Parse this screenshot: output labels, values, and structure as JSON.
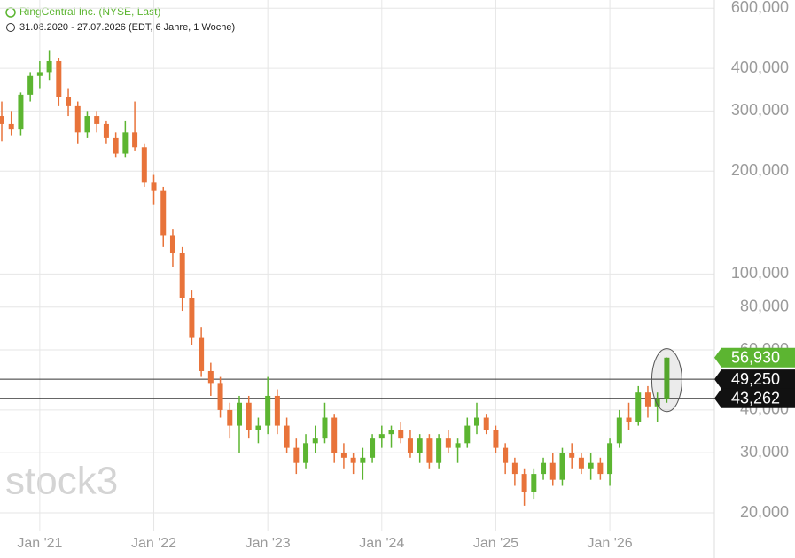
{
  "chart_data": {
    "type": "candlestick",
    "title": "RingCentral Inc. (NYSE, Last)",
    "subtitle": "31.08.2020 - 27.07.2026 (EDT, 6 Jahre, 1 Woche)",
    "watermark": "stock3",
    "log_scale": true,
    "grid": true,
    "up_color": "#5cb531",
    "down_color": "#e8733a",
    "categories": [
      null,
      null,
      null,
      null,
      "Jan '21",
      null,
      null,
      null,
      null,
      null,
      null,
      null,
      null,
      null,
      null,
      null,
      "Jan '22",
      null,
      null,
      null,
      null,
      null,
      null,
      null,
      null,
      null,
      null,
      null,
      "Jan '23",
      null,
      null,
      null,
      null,
      null,
      null,
      null,
      null,
      null,
      null,
      null,
      "Jan '24",
      null,
      null,
      null,
      null,
      null,
      null,
      null,
      null,
      null,
      null,
      null,
      "Jan '25",
      null,
      null,
      null,
      null,
      null,
      null,
      null,
      null,
      null,
      null,
      null,
      "Jan '26",
      null,
      null,
      null,
      null,
      null,
      null
    ],
    "open": [
      290,
      275,
      265,
      335,
      380,
      390,
      420,
      330,
      310,
      260,
      290,
      275,
      250,
      225,
      260,
      235,
      185,
      175,
      130,
      115,
      85,
      65,
      52,
      48,
      40,
      36,
      42,
      35,
      36,
      44,
      36,
      31,
      28,
      32,
      33,
      38,
      30,
      29,
      28,
      29,
      33,
      34,
      35,
      33,
      30,
      33,
      28,
      33,
      31,
      32,
      36,
      38,
      35,
      31,
      28,
      26,
      23,
      26,
      28,
      25,
      30,
      29,
      27,
      28,
      26,
      32,
      38,
      37,
      45,
      41,
      43
    ],
    "high": [
      320,
      300,
      340,
      390,
      420,
      450,
      430,
      350,
      320,
      300,
      300,
      280,
      260,
      280,
      320,
      240,
      195,
      180,
      135,
      120,
      90,
      70,
      55,
      50,
      42,
      44,
      44,
      38,
      50,
      46,
      38,
      33,
      34,
      36,
      42,
      39,
      32,
      30,
      31,
      34,
      36,
      36,
      37,
      35,
      34,
      34,
      34,
      35,
      33,
      38,
      42,
      39,
      36,
      32,
      29,
      27,
      27,
      29,
      30,
      31,
      32,
      30,
      30,
      29,
      33,
      40,
      42,
      47,
      47,
      45,
      57
    ],
    "low": [
      245,
      255,
      255,
      320,
      350,
      370,
      310,
      290,
      240,
      250,
      260,
      240,
      220,
      220,
      230,
      180,
      160,
      120,
      105,
      78,
      62,
      50,
      44,
      38,
      33,
      30,
      33,
      32,
      34,
      34,
      30,
      26,
      27,
      30,
      32,
      28,
      27,
      26,
      25,
      28,
      31,
      31,
      32,
      29,
      28,
      27,
      27,
      30,
      28,
      31,
      34,
      34,
      30,
      26,
      24,
      21,
      22,
      25,
      24,
      24,
      27,
      26,
      25,
      25,
      24,
      31,
      35,
      36,
      38,
      37,
      42
    ],
    "close": [
      275,
      265,
      335,
      380,
      390,
      420,
      330,
      310,
      260,
      290,
      275,
      250,
      225,
      260,
      235,
      185,
      175,
      130,
      115,
      85,
      65,
      52,
      48,
      40,
      36,
      42,
      35,
      36,
      44,
      36,
      31,
      28,
      32,
      33,
      38,
      30,
      29,
      28,
      29,
      33,
      34,
      35,
      33,
      30,
      33,
      28,
      33,
      31,
      32,
      36,
      38,
      35,
      31,
      28,
      26,
      23,
      26,
      28,
      25,
      30,
      29,
      27,
      28,
      26,
      32,
      38,
      37,
      45,
      41,
      43,
      56.93
    ],
    "ylim": [
      17.65,
      634
    ],
    "yticks": [
      {
        "value": 20,
        "label": "20,000"
      },
      {
        "value": 30,
        "label": "30,000"
      },
      {
        "value": 40,
        "label": "40,000"
      },
      {
        "value": 60,
        "label": "60,000"
      },
      {
        "value": 80,
        "label": "80,000"
      },
      {
        "value": 100,
        "label": "100,000"
      },
      {
        "value": 200,
        "label": "200,000"
      },
      {
        "value": 300,
        "label": "300,000"
      },
      {
        "value": 400,
        "label": "400,000"
      },
      {
        "value": 600,
        "label": "600,000"
      }
    ],
    "hlines": [
      {
        "value": 49.25,
        "label": "49,250"
      },
      {
        "value": 43.262,
        "label": "43,262"
      }
    ],
    "last_price": {
      "value": 56.93,
      "label": "56,930"
    }
  }
}
